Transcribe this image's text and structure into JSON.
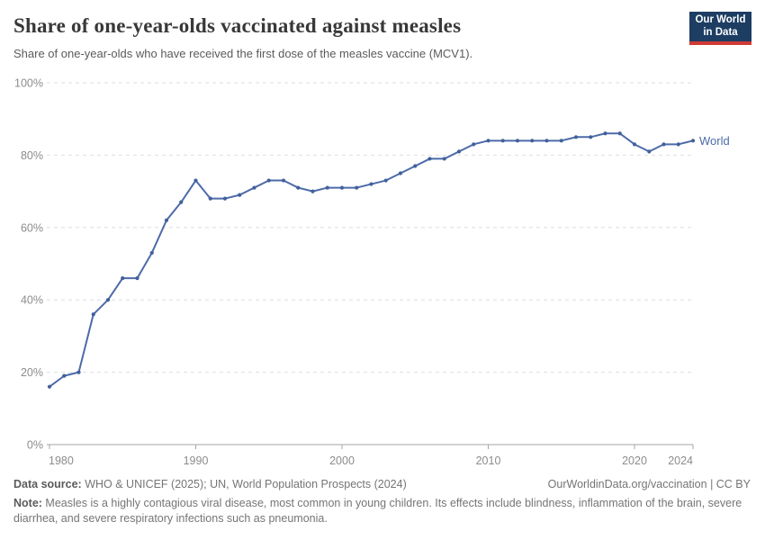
{
  "header": {
    "title": "Share of one-year-olds vaccinated against measles",
    "subtitle": "Share of one-year-olds who have received the first dose of the measles vaccine (MCV1).",
    "logo": {
      "line1": "Our World",
      "line2": "in Data",
      "bg_color": "#1d3d63",
      "accent_color": "#cf3b34"
    }
  },
  "chart_data": {
    "type": "line",
    "title": "Share of one-year-olds vaccinated against measles",
    "xlabel": "",
    "ylabel": "",
    "xlim": [
      1980,
      2024
    ],
    "ylim": [
      0,
      100
    ],
    "grid": "horizontal-dashed",
    "legend_position": "end-of-line-label",
    "x_ticks": [
      1980,
      1990,
      2000,
      2010,
      2020,
      2024
    ],
    "y_ticks": [
      0,
      20,
      40,
      60,
      80,
      100
    ],
    "y_tick_labels": [
      "0%",
      "20%",
      "40%",
      "60%",
      "80%",
      "100%"
    ],
    "series": [
      {
        "name": "World",
        "color": "#4d6ba8",
        "marker_color": "#41609c",
        "x": [
          1980,
          1981,
          1982,
          1983,
          1984,
          1985,
          1986,
          1987,
          1988,
          1989,
          1990,
          1991,
          1992,
          1993,
          1994,
          1995,
          1996,
          1997,
          1998,
          1999,
          2000,
          2001,
          2002,
          2003,
          2004,
          2005,
          2006,
          2007,
          2008,
          2009,
          2010,
          2011,
          2012,
          2013,
          2014,
          2015,
          2016,
          2017,
          2018,
          2019,
          2020,
          2021,
          2022,
          2023,
          2024
        ],
        "values": [
          16,
          19,
          20,
          36,
          40,
          46,
          46,
          53,
          62,
          67,
          73,
          68,
          68,
          69,
          71,
          73,
          73,
          71,
          70,
          71,
          71,
          71,
          72,
          73,
          75,
          77,
          79,
          79,
          81,
          83,
          84,
          84,
          84,
          84,
          84,
          84,
          85,
          85,
          86,
          86,
          83,
          81,
          83,
          83,
          84
        ]
      }
    ],
    "colors": {
      "gridline": "#dedede",
      "axis": "#a5a5a5",
      "tick_label": "#8c8c8c"
    }
  },
  "footer": {
    "datasource_label": "Data source:",
    "datasource_text": " WHO & UNICEF (2025); UN, World Population Prospects (2024)",
    "link": "OurWorldinData.org/vaccination | CC BY",
    "note_label": "Note:",
    "note_text": " Measles is a highly contagious viral disease, most common in young children. Its effects include blindness, inflammation of the brain, severe diarrhea, and severe respiratory infections such as pneumonia."
  }
}
